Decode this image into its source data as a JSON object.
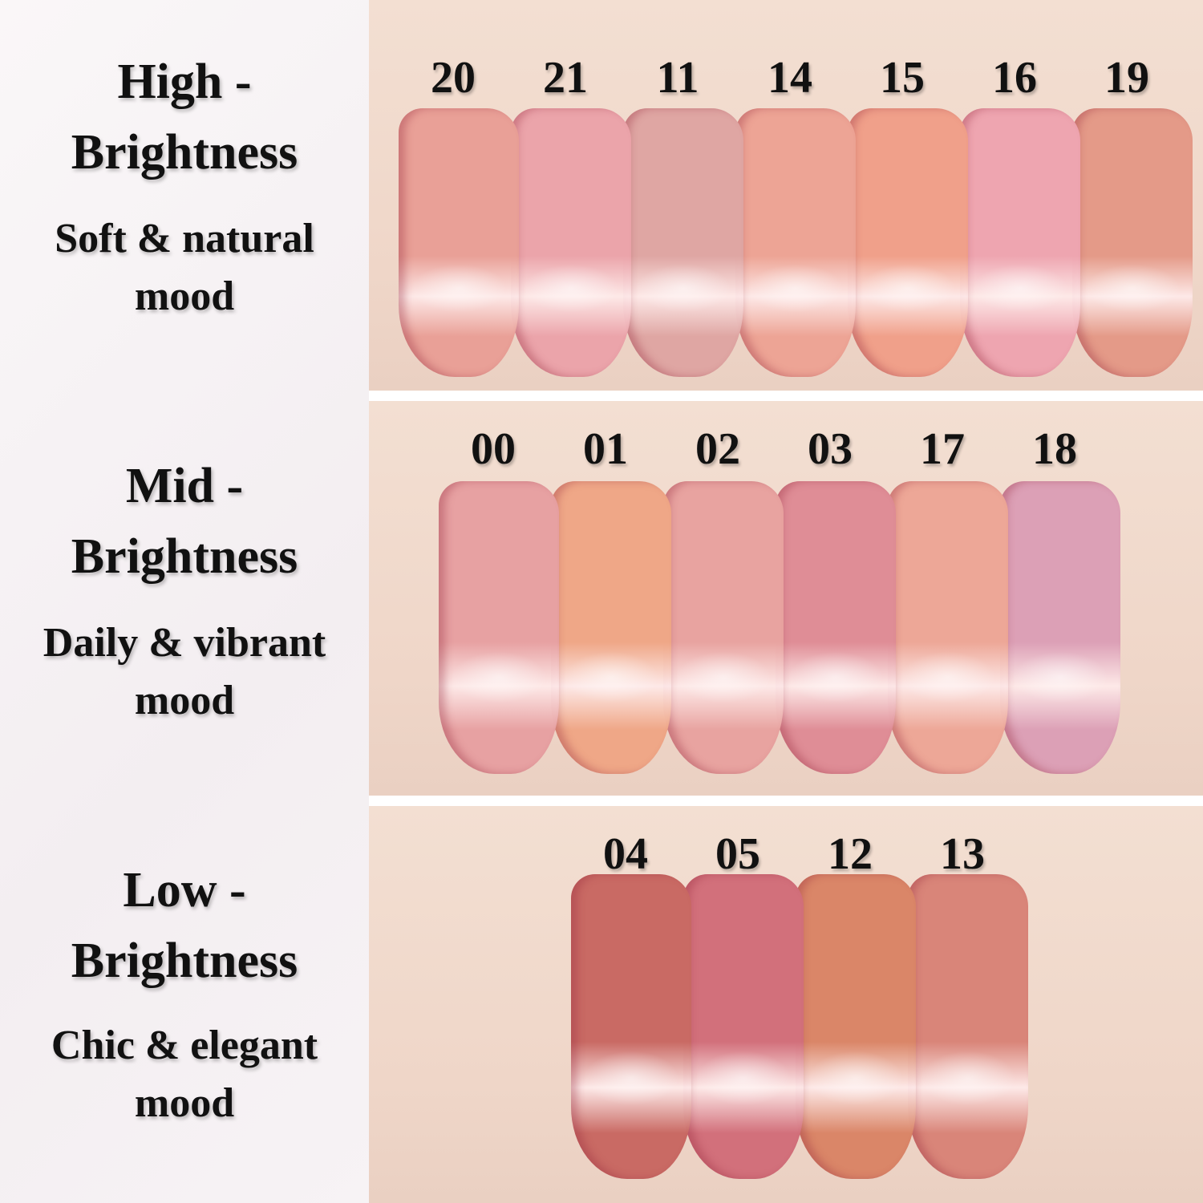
{
  "groups": [
    {
      "title_line1": "High -",
      "title_line2": "Brightness",
      "mood_line1": "Soft & natural",
      "mood_line2": "mood",
      "shades": [
        {
          "number": "20",
          "color": "#e9a097"
        },
        {
          "number": "21",
          "color": "#eba4aa"
        },
        {
          "number": "11",
          "color": "#dfa6a3"
        },
        {
          "number": "14",
          "color": "#eda495"
        },
        {
          "number": "15",
          "color": "#f0a08a"
        },
        {
          "number": "16",
          "color": "#eea5b0"
        },
        {
          "number": "19",
          "color": "#e49a88"
        }
      ]
    },
    {
      "title_line1": "Mid -",
      "title_line2": "Brightness",
      "mood_line1": "Daily & vibrant",
      "mood_line2": "mood",
      "shades": [
        {
          "number": "00",
          "color": "#e7a1a2"
        },
        {
          "number": "01",
          "color": "#efa787"
        },
        {
          "number": "02",
          "color": "#e8a3a0"
        },
        {
          "number": "03",
          "color": "#df8d96"
        },
        {
          "number": "17",
          "color": "#eda797"
        },
        {
          "number": "18",
          "color": "#dca0b6"
        }
      ]
    },
    {
      "title_line1": "Low -",
      "title_line2": "Brightness",
      "mood_line1": "Chic & elegant",
      "mood_line2": "mood",
      "shades": [
        {
          "number": "04",
          "color": "#c96a64"
        },
        {
          "number": "05",
          "color": "#d2707b"
        },
        {
          "number": "12",
          "color": "#da8668"
        },
        {
          "number": "13",
          "color": "#d98579"
        }
      ]
    }
  ]
}
